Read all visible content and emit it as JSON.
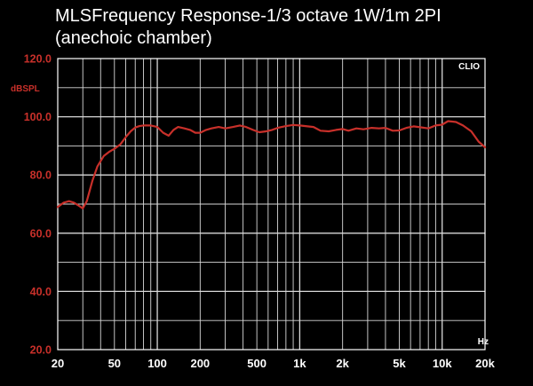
{
  "chart_data": {
    "type": "line",
    "title_lines": [
      "MLSFrequency Response-1/3 octave 1W/1m 2PI",
      "(anechoic chamber)"
    ],
    "ylabel": "dBSPL",
    "xlabel": "Hz",
    "watermark": "CLIO",
    "x_scale": "log",
    "xlim": [
      20,
      20000
    ],
    "ylim": [
      20,
      120
    ],
    "x_ticks": [
      {
        "value": 20,
        "label": "20"
      },
      {
        "value": 50,
        "label": "50"
      },
      {
        "value": 100,
        "label": "100"
      },
      {
        "value": 200,
        "label": "200"
      },
      {
        "value": 500,
        "label": "500"
      },
      {
        "value": 1000,
        "label": "1k"
      },
      {
        "value": 2000,
        "label": "2k"
      },
      {
        "value": 5000,
        "label": "5k"
      },
      {
        "value": 10000,
        "label": "10k"
      },
      {
        "value": 20000,
        "label": "20k"
      }
    ],
    "y_ticks": [
      {
        "value": 20,
        "label": "20.0"
      },
      {
        "value": 40,
        "label": "40.0"
      },
      {
        "value": 60,
        "label": "60.0"
      },
      {
        "value": 80,
        "label": "80.0"
      },
      {
        "value": 100,
        "label": "100.0"
      },
      {
        "value": 120,
        "label": "120.0"
      }
    ],
    "grid": true,
    "series": [
      {
        "x": [
          20,
          22,
          24,
          26,
          28,
          30,
          32,
          35,
          38,
          42,
          46,
          50,
          55,
          60,
          65,
          70,
          75,
          80,
          85,
          90,
          100,
          110,
          120,
          130,
          140,
          155,
          170,
          185,
          200,
          220,
          240,
          270,
          300,
          340,
          380,
          420,
          470,
          520,
          580,
          640,
          700,
          800,
          900,
          1000,
          1100,
          1250,
          1400,
          1600,
          1800,
          2000,
          2200,
          2500,
          2800,
          3200,
          3600,
          4000,
          4500,
          5000,
          5600,
          6300,
          7000,
          8000,
          9000,
          10000,
          11000,
          12500,
          14000,
          16000,
          18000,
          20000
        ],
        "y": [
          69,
          70.5,
          71,
          70.5,
          69.5,
          68.5,
          71,
          78,
          83,
          86.5,
          88,
          89,
          90.5,
          93,
          95,
          96.3,
          96.8,
          97,
          97,
          97,
          96.5,
          94.5,
          93.5,
          95.5,
          96.5,
          96,
          95.5,
          94.5,
          94.5,
          95.5,
          96,
          96.5,
          96,
          96.5,
          97,
          96.5,
          95.5,
          94.7,
          95,
          95.5,
          96.2,
          96.8,
          97.2,
          97,
          96.8,
          96.5,
          95.2,
          95,
          95.5,
          95.8,
          95.2,
          96,
          95.7,
          96.2,
          96,
          96.2,
          95.2,
          95.3,
          96.2,
          96.7,
          96.4,
          96,
          97,
          97.3,
          98.5,
          98.2,
          97,
          95,
          91.5,
          89.5
        ]
      }
    ]
  },
  "colors": {
    "background": "#000000",
    "grid": "#d8d8d8",
    "curve": "#c8302a",
    "tick_y": "#c8302a",
    "tick_x": "#ffffff",
    "title": "#ffffff"
  }
}
